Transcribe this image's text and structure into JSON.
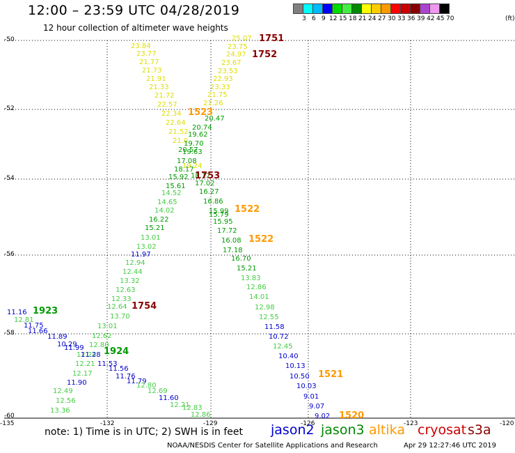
{
  "header": {
    "title": "12:00 – 23:59 UTC 04/28/2019",
    "subtitle": "12 hour collection of altimeter wave heights"
  },
  "legend": {
    "unit": "(ft)",
    "colors": [
      "#808080",
      "#00ffff",
      "#00bbff",
      "#0000ff",
      "#00dd00",
      "#44ee44",
      "#008800",
      "#ffff00",
      "#ffcc00",
      "#ff9900",
      "#ff0000",
      "#cc0000",
      "#880000",
      "#aa44cc",
      "#ee99ee",
      "#000000"
    ],
    "labels": [
      "3",
      "6",
      "9",
      "12",
      "15",
      "18",
      "21",
      "24",
      "27",
      "30",
      "33",
      "36",
      "39",
      "42",
      "45",
      "70"
    ]
  },
  "axes": {
    "lat_labels": [
      "-50",
      "-52",
      "-54",
      "-56",
      "-58",
      "-60"
    ],
    "lon_labels": [
      "-135",
      "-132",
      "-129",
      "-126",
      "-123",
      "-120"
    ]
  },
  "footer": {
    "note": "note:  1) Time is in UTC;  2) SWH is in feet",
    "satellites": [
      {
        "name": "jason2",
        "color": "#0000cc"
      },
      {
        "name": "jason3",
        "color": "#008800"
      },
      {
        "name": "altika",
        "color": "#ff9900"
      },
      {
        "name": "cryosat",
        "color": "#cc0000"
      },
      {
        "name": "s3a",
        "color": "#880000"
      }
    ],
    "credit": "NOAA/NESDIS Center for Satellite Applications and Research",
    "timestamp": "Apr 29 12:27:46 UTC 2019"
  },
  "colors": {
    "yellow": "#dddd00",
    "green": "#009900",
    "lightgreen": "#44cc44",
    "blue": "#0000cc",
    "orange": "#ff9900",
    "darkred": "#880000"
  },
  "time_labels": [
    {
      "text": "1751",
      "color": "darkred"
    },
    {
      "text": "1752",
      "color": "darkred"
    },
    {
      "text": "1523",
      "color": "orange"
    },
    {
      "text": "1753",
      "color": "darkred"
    },
    {
      "text": "1522",
      "color": "orange"
    },
    {
      "text": "1522",
      "color": "orange"
    },
    {
      "text": "1754",
      "color": "darkred"
    },
    {
      "text": "1923",
      "color": "green"
    },
    {
      "text": "1924",
      "color": "green"
    },
    {
      "text": "1521",
      "color": "orange"
    },
    {
      "text": "1520",
      "color": "orange"
    }
  ],
  "values": [
    {
      "v": "25.07",
      "c": "yellow"
    },
    {
      "v": "23.84",
      "c": "yellow"
    },
    {
      "v": "23.75",
      "c": "yellow"
    },
    {
      "v": "23.77",
      "c": "yellow"
    },
    {
      "v": "24.97",
      "c": "yellow"
    },
    {
      "v": "21.77",
      "c": "yellow"
    },
    {
      "v": "23.67",
      "c": "yellow"
    },
    {
      "v": "21.73",
      "c": "yellow"
    },
    {
      "v": "23.53",
      "c": "yellow"
    },
    {
      "v": "21.91",
      "c": "yellow"
    },
    {
      "v": "22.93",
      "c": "yellow"
    },
    {
      "v": "21.33",
      "c": "yellow"
    },
    {
      "v": "23.33",
      "c": "yellow"
    },
    {
      "v": "21.72",
      "c": "yellow"
    },
    {
      "v": "21.75",
      "c": "yellow"
    },
    {
      "v": "22.57",
      "c": "yellow"
    },
    {
      "v": "21.26",
      "c": "yellow"
    },
    {
      "v": "22.34",
      "c": "yellow"
    },
    {
      "v": "20.47",
      "c": "green"
    },
    {
      "v": "22.64",
      "c": "yellow"
    },
    {
      "v": "20.74",
      "c": "green"
    },
    {
      "v": "21.52",
      "c": "yellow"
    },
    {
      "v": "19.62",
      "c": "green"
    },
    {
      "v": "21.0",
      "c": "yellow"
    },
    {
      "v": "19.70",
      "c": "green"
    },
    {
      "v": "20.57",
      "c": "green"
    },
    {
      "v": "19.63",
      "c": "green"
    },
    {
      "v": "17.08",
      "c": "green"
    },
    {
      "v": "19.24",
      "c": "yellow"
    },
    {
      "v": "18.17",
      "c": "green"
    },
    {
      "v": "15.92",
      "c": "green"
    },
    {
      "v": "18.12",
      "c": "green"
    },
    {
      "v": "15.61",
      "c": "green"
    },
    {
      "v": "17.02",
      "c": "green"
    },
    {
      "v": "14.52",
      "c": "lightgreen"
    },
    {
      "v": "16.27",
      "c": "green"
    },
    {
      "v": "14.65",
      "c": "lightgreen"
    },
    {
      "v": "16.86",
      "c": "green"
    },
    {
      "v": "14.02",
      "c": "lightgreen"
    },
    {
      "v": "15.99",
      "c": "green"
    },
    {
      "v": "15.79",
      "c": "green"
    },
    {
      "v": "16.22",
      "c": "green"
    },
    {
      "v": "15.95",
      "c": "green"
    },
    {
      "v": "15.21",
      "c": "green"
    },
    {
      "v": "17.72",
      "c": "green"
    },
    {
      "v": "13.01",
      "c": "lightgreen"
    },
    {
      "v": "16.08",
      "c": "green"
    },
    {
      "v": "13.02",
      "c": "lightgreen"
    },
    {
      "v": "17.18",
      "c": "green"
    },
    {
      "v": "11.97",
      "c": "blue"
    },
    {
      "v": "16.70",
      "c": "green"
    },
    {
      "v": "12.94",
      "c": "lightgreen"
    },
    {
      "v": "15.21",
      "c": "green"
    },
    {
      "v": "12.44",
      "c": "lightgreen"
    },
    {
      "v": "13.83",
      "c": "lightgreen"
    },
    {
      "v": "13.32",
      "c": "lightgreen"
    },
    {
      "v": "12.86",
      "c": "lightgreen"
    },
    {
      "v": "12.63",
      "c": "lightgreen"
    },
    {
      "v": "14.01",
      "c": "lightgreen"
    },
    {
      "v": "12.33",
      "c": "lightgreen"
    },
    {
      "v": "12.64",
      "c": "lightgreen"
    },
    {
      "v": "12.98",
      "c": "lightgreen"
    },
    {
      "v": "11.16",
      "c": "blue"
    },
    {
      "v": "13.70",
      "c": "lightgreen"
    },
    {
      "v": "12.55",
      "c": "lightgreen"
    },
    {
      "v": "12.81",
      "c": "lightgreen"
    },
    {
      "v": "11.75",
      "c": "blue"
    },
    {
      "v": "13.01",
      "c": "lightgreen"
    },
    {
      "v": "11.58",
      "c": "blue"
    },
    {
      "v": "11.66",
      "c": "blue"
    },
    {
      "v": "11.89",
      "c": "blue"
    },
    {
      "v": "12.62",
      "c": "lightgreen"
    },
    {
      "v": "10.72",
      "c": "blue"
    },
    {
      "v": "10.29",
      "c": "blue"
    },
    {
      "v": "12.80",
      "c": "lightgreen"
    },
    {
      "v": "11.99",
      "c": "blue"
    },
    {
      "v": "12.45",
      "c": "lightgreen"
    },
    {
      "v": "12.24",
      "c": "lightgreen"
    },
    {
      "v": "11.28",
      "c": "blue"
    },
    {
      "v": "10.40",
      "c": "blue"
    },
    {
      "v": "12.21",
      "c": "lightgreen"
    },
    {
      "v": "11.53",
      "c": "blue"
    },
    {
      "v": "10.13",
      "c": "blue"
    },
    {
      "v": "12.17",
      "c": "lightgreen"
    },
    {
      "v": "11.56",
      "c": "blue"
    },
    {
      "v": "11.76",
      "c": "blue"
    },
    {
      "v": "10.50",
      "c": "blue"
    },
    {
      "v": "11.90",
      "c": "blue"
    },
    {
      "v": "11.79",
      "c": "blue"
    },
    {
      "v": "10.03",
      "c": "blue"
    },
    {
      "v": "12.80",
      "c": "lightgreen"
    },
    {
      "v": "12.49",
      "c": "lightgreen"
    },
    {
      "v": "12.69",
      "c": "lightgreen"
    },
    {
      "v": "9.01",
      "c": "blue"
    },
    {
      "v": "11.60",
      "c": "blue"
    },
    {
      "v": "12.56",
      "c": "lightgreen"
    },
    {
      "v": "12.21",
      "c": "lightgreen"
    },
    {
      "v": "9.07",
      "c": "blue"
    },
    {
      "v": "12.83",
      "c": "lightgreen"
    },
    {
      "v": "13.36",
      "c": "lightgreen"
    },
    {
      "v": "12.86",
      "c": "lightgreen"
    },
    {
      "v": "9.02",
      "c": "blue"
    }
  ]
}
